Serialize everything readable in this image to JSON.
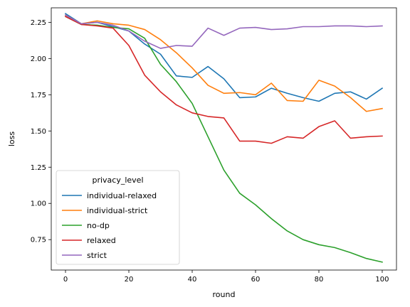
{
  "chart_data": {
    "type": "line",
    "xlabel": "round",
    "ylabel": "loss",
    "xlim": [
      -4.5,
      104.5
    ],
    "ylim": [
      0.54,
      2.35
    ],
    "xticks": [
      0,
      20,
      40,
      60,
      80,
      100
    ],
    "yticks": [
      0.75,
      1.0,
      1.25,
      1.5,
      1.75,
      2.0,
      2.25
    ],
    "ytick_labels": [
      "0.75",
      "1.00",
      "1.25",
      "1.50",
      "1.75",
      "2.00",
      "2.25"
    ],
    "grid": false,
    "legend": {
      "title": "privacy_level",
      "position": "lower-left"
    },
    "x": [
      0,
      5,
      10,
      15,
      20,
      25,
      30,
      35,
      40,
      45,
      50,
      55,
      60,
      65,
      70,
      75,
      80,
      85,
      90,
      95,
      100
    ],
    "series": [
      {
        "name": "individual-relaxed",
        "color": "#1f77b4",
        "values": [
          2.31,
          2.24,
          2.25,
          2.22,
          2.19,
          2.1,
          2.03,
          1.88,
          1.87,
          1.945,
          1.86,
          1.73,
          1.735,
          1.795,
          1.76,
          1.73,
          1.705,
          1.76,
          1.77,
          1.72,
          1.795
        ]
      },
      {
        "name": "individual-strict",
        "color": "#ff7f0e",
        "values": [
          2.3,
          2.24,
          2.26,
          2.24,
          2.23,
          2.2,
          2.13,
          2.04,
          1.935,
          1.815,
          1.76,
          1.765,
          1.75,
          1.83,
          1.71,
          1.705,
          1.85,
          1.81,
          1.73,
          1.635,
          1.655
        ]
      },
      {
        "name": "no-dp",
        "color": "#2ca02c",
        "values": [
          2.29,
          2.235,
          2.23,
          2.215,
          2.205,
          2.14,
          1.96,
          1.84,
          1.69,
          1.46,
          1.23,
          1.07,
          0.99,
          0.895,
          0.81,
          0.75,
          0.715,
          0.695,
          0.66,
          0.62,
          0.595
        ]
      },
      {
        "name": "relaxed",
        "color": "#d62728",
        "values": [
          2.29,
          2.235,
          2.225,
          2.21,
          2.09,
          1.885,
          1.77,
          1.68,
          1.625,
          1.6,
          1.59,
          1.43,
          1.43,
          1.415,
          1.46,
          1.45,
          1.53,
          1.57,
          1.45,
          1.46,
          1.465
        ]
      },
      {
        "name": "strict",
        "color": "#9467bd",
        "values": [
          2.3,
          2.24,
          2.25,
          2.23,
          2.19,
          2.12,
          2.07,
          2.09,
          2.085,
          2.21,
          2.16,
          2.21,
          2.215,
          2.2,
          2.205,
          2.22,
          2.22,
          2.225,
          2.225,
          2.22,
          2.225
        ]
      }
    ]
  }
}
